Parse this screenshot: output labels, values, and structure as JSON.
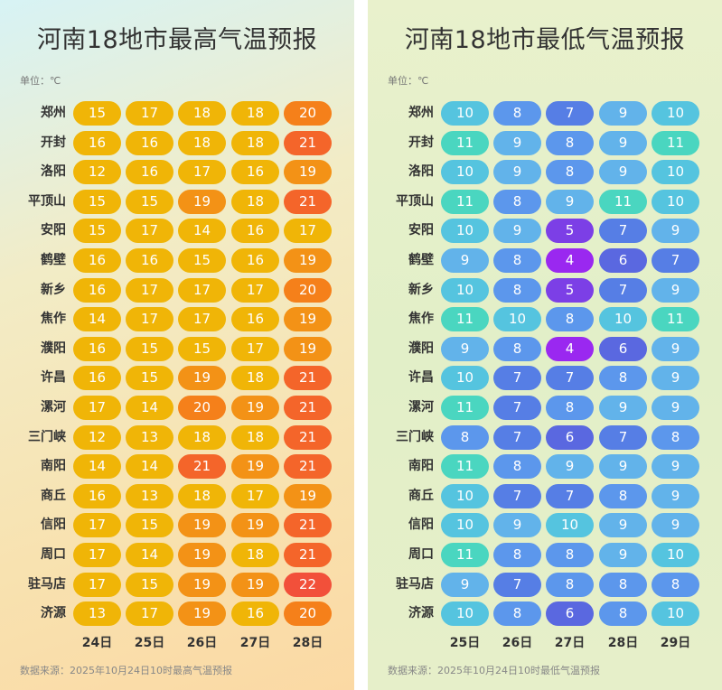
{
  "colors": {
    "high_scale": {
      "12": "#f0b507",
      "13": "#f0b507",
      "14": "#f0b507",
      "15": "#f0b507",
      "16": "#f0b507",
      "17": "#f0b507",
      "18": "#f0b507",
      "19": "#f39216",
      "20": "#f5801a",
      "21": "#f4652a",
      "22": "#f2503a"
    },
    "low_scale": {
      "11": "#4ad6c0",
      "10": "#55c4df",
      "9": "#62b3ea",
      "8": "#5c97ec",
      "7": "#567ee5",
      "6": "#5a68e0",
      "5": "#7c3fe6",
      "4": "#9a28f0"
    },
    "text": "#ffffff"
  },
  "high": {
    "title": "河南18地市最高气温预报",
    "unit": "单位：℃",
    "source": "数据来源：2025年10月24日10时最高气温预报",
    "chart_data": {
      "type": "table",
      "x": [
        "24日",
        "25日",
        "26日",
        "27日",
        "28日"
      ],
      "categories": [
        "郑州",
        "开封",
        "洛阳",
        "平顶山",
        "安阳",
        "鹤壁",
        "新乡",
        "焦作",
        "濮阳",
        "许昌",
        "漯河",
        "三门峡",
        "南阳",
        "商丘",
        "信阳",
        "周口",
        "驻马店",
        "济源"
      ],
      "values": [
        [
          15,
          17,
          18,
          18,
          20
        ],
        [
          16,
          16,
          18,
          18,
          21
        ],
        [
          12,
          16,
          17,
          16,
          19
        ],
        [
          15,
          15,
          19,
          18,
          21
        ],
        [
          15,
          17,
          14,
          16,
          17
        ],
        [
          16,
          16,
          15,
          16,
          19
        ],
        [
          16,
          17,
          17,
          17,
          20
        ],
        [
          14,
          17,
          17,
          16,
          19
        ],
        [
          16,
          15,
          15,
          17,
          19
        ],
        [
          16,
          15,
          19,
          18,
          21
        ],
        [
          17,
          14,
          20,
          19,
          21
        ],
        [
          12,
          13,
          18,
          18,
          21
        ],
        [
          14,
          14,
          21,
          19,
          21
        ],
        [
          16,
          13,
          18,
          17,
          19
        ],
        [
          17,
          15,
          19,
          19,
          21
        ],
        [
          17,
          14,
          19,
          18,
          21
        ],
        [
          17,
          15,
          19,
          19,
          22
        ],
        [
          13,
          17,
          19,
          16,
          20
        ]
      ]
    }
  },
  "low": {
    "title": "河南18地市最低气温预报",
    "unit": "单位：℃",
    "source": "数据来源：2025年10月24日10时最低气温预报",
    "chart_data": {
      "type": "table",
      "x": [
        "25日",
        "26日",
        "27日",
        "28日",
        "29日"
      ],
      "categories": [
        "郑州",
        "开封",
        "洛阳",
        "平顶山",
        "安阳",
        "鹤壁",
        "新乡",
        "焦作",
        "濮阳",
        "许昌",
        "漯河",
        "三门峡",
        "南阳",
        "商丘",
        "信阳",
        "周口",
        "驻马店",
        "济源"
      ],
      "values": [
        [
          10,
          8,
          7,
          9,
          10
        ],
        [
          11,
          9,
          8,
          9,
          11
        ],
        [
          10,
          9,
          8,
          9,
          10
        ],
        [
          11,
          8,
          9,
          11,
          10
        ],
        [
          10,
          9,
          5,
          7,
          9
        ],
        [
          9,
          8,
          4,
          6,
          7
        ],
        [
          10,
          8,
          5,
          7,
          9
        ],
        [
          11,
          10,
          8,
          10,
          11
        ],
        [
          9,
          8,
          4,
          6,
          9
        ],
        [
          10,
          7,
          7,
          8,
          9
        ],
        [
          11,
          7,
          8,
          9,
          9
        ],
        [
          8,
          7,
          6,
          7,
          8
        ],
        [
          11,
          8,
          9,
          9,
          9
        ],
        [
          10,
          7,
          7,
          8,
          9
        ],
        [
          10,
          9,
          10,
          9,
          9
        ],
        [
          11,
          8,
          8,
          9,
          10
        ],
        [
          9,
          7,
          8,
          8,
          8
        ],
        [
          10,
          8,
          6,
          8,
          10
        ]
      ]
    }
  }
}
